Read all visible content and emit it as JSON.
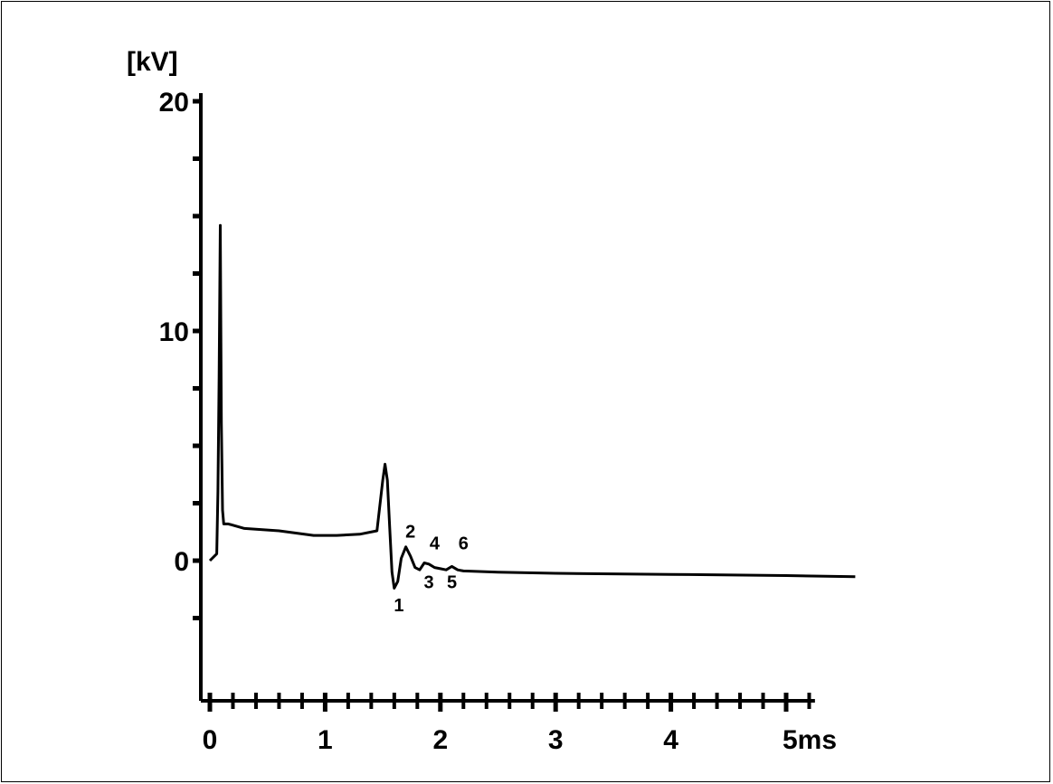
{
  "chart_data": {
    "type": "line",
    "y_unit_label": "[kV]",
    "x_unit_suffix": "ms",
    "xlim": [
      0,
      5.2
    ],
    "ylim": [
      -5.5,
      20
    ],
    "y_tick_labels": [
      {
        "value": 20,
        "text": "20"
      },
      {
        "value": 10,
        "text": "10"
      },
      {
        "value": 0,
        "text": "0"
      }
    ],
    "y_minor_ticks": [
      17.5,
      15,
      12.5,
      7.5,
      5,
      2.5,
      -2.5
    ],
    "x_tick_labels": [
      {
        "value": 0,
        "text": "0"
      },
      {
        "value": 1,
        "text": "1"
      },
      {
        "value": 2,
        "text": "2"
      },
      {
        "value": 3,
        "text": "3"
      },
      {
        "value": 4,
        "text": "4"
      },
      {
        "value": 5,
        "text": "5ms"
      }
    ],
    "x_minor_step": 0.2,
    "grid": false,
    "series": [
      {
        "x": [
          0,
          0.06,
          0.07,
          0.08,
          0.09,
          0.1,
          0.11,
          0.12,
          0.16,
          0.3,
          0.6,
          0.9,
          1.1,
          1.3,
          1.45,
          1.5,
          1.52,
          1.54,
          1.56,
          1.58,
          1.6,
          1.63,
          1.66,
          1.7,
          1.74,
          1.78,
          1.82,
          1.86,
          1.9,
          1.95,
          2.0,
          2.05,
          2.1,
          2.15,
          2.2,
          2.5,
          3.0,
          4.0,
          5.0,
          5.6
        ],
        "y": [
          0,
          0.3,
          3,
          8,
          14.6,
          6,
          2.2,
          1.6,
          1.6,
          1.4,
          1.3,
          1.1,
          1.1,
          1.15,
          1.3,
          3.5,
          4.2,
          3.5,
          1.5,
          -0.5,
          -1.2,
          -0.9,
          0.1,
          0.6,
          0.2,
          -0.3,
          -0.4,
          -0.1,
          -0.15,
          -0.3,
          -0.35,
          -0.4,
          -0.25,
          -0.4,
          -0.45,
          -0.5,
          -0.55,
          -0.6,
          -0.65,
          -0.7
        ]
      }
    ],
    "annotations": [
      {
        "text": "1",
        "x": 1.64,
        "y": -2.2
      },
      {
        "text": "2",
        "x": 1.74,
        "y": 1.0
      },
      {
        "text": "3",
        "x": 1.9,
        "y": -1.2
      },
      {
        "text": "4",
        "x": 1.95,
        "y": 0.5
      },
      {
        "text": "5",
        "x": 2.1,
        "y": -1.2
      },
      {
        "text": "6",
        "x": 2.2,
        "y": 0.5
      }
    ]
  }
}
